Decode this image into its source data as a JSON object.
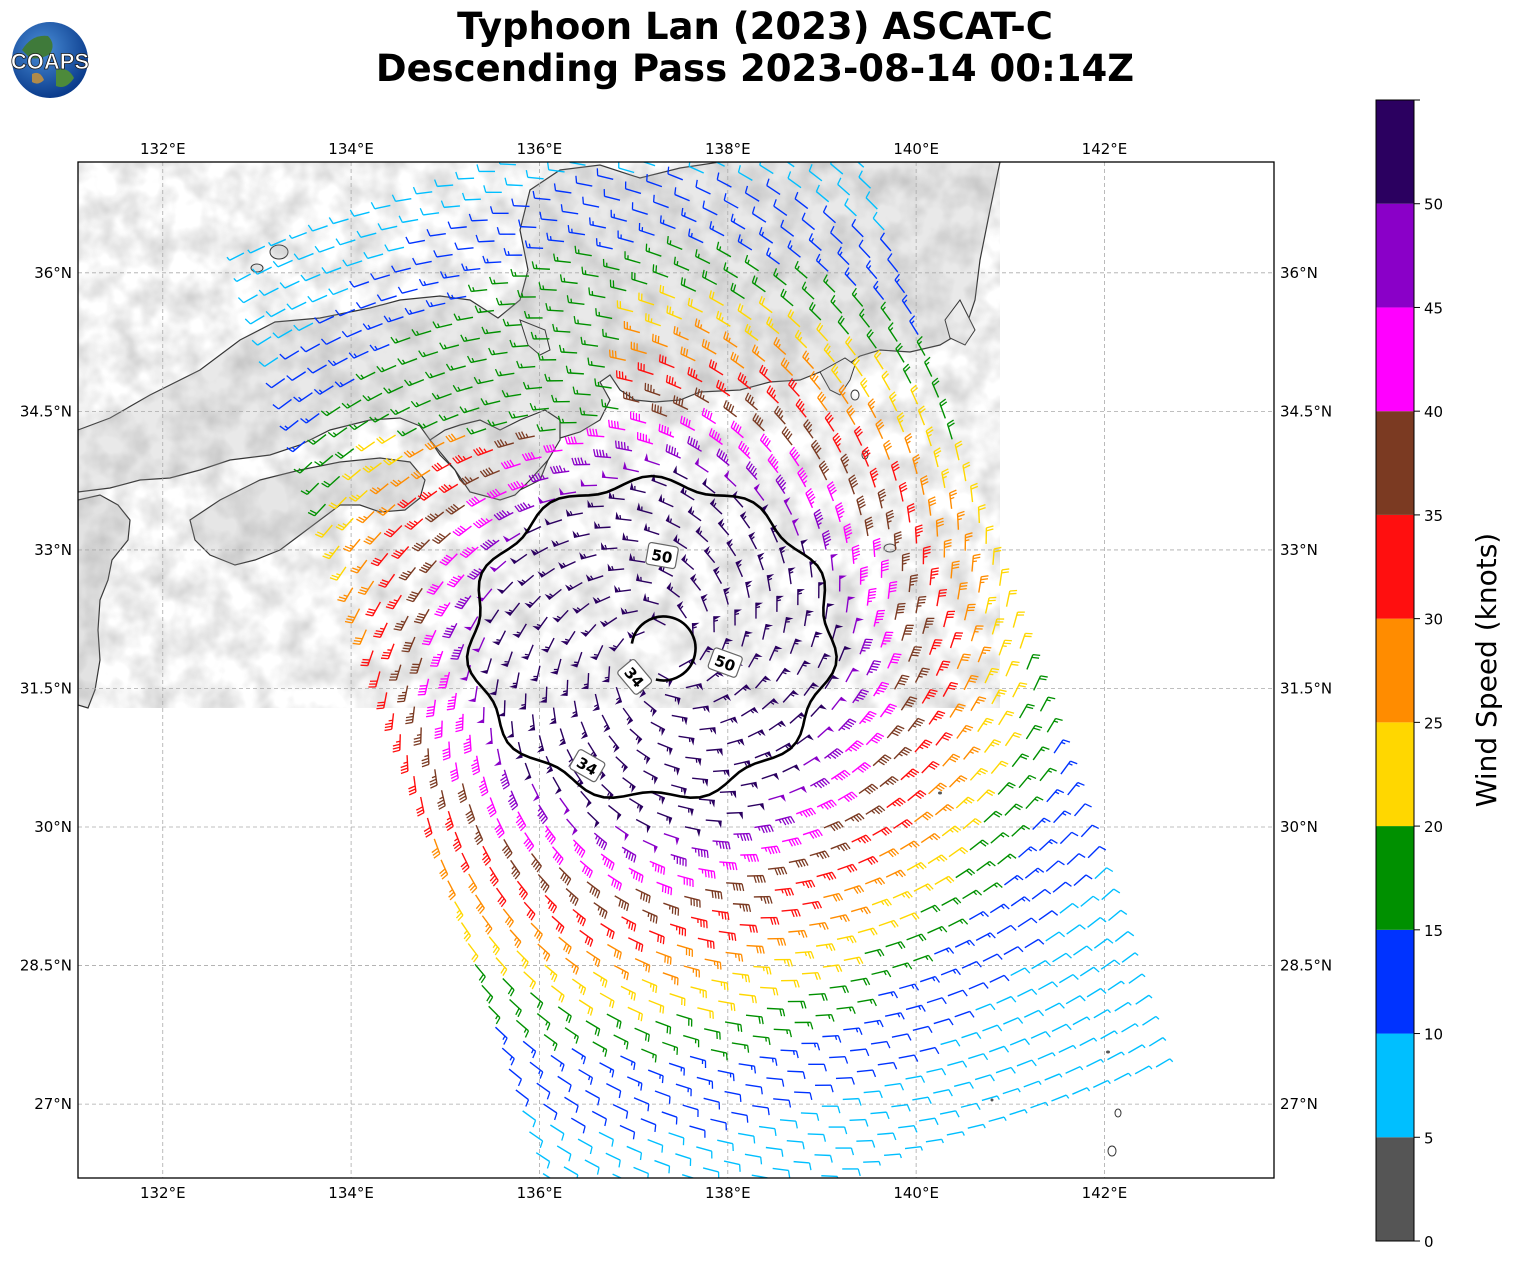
{
  "title": {
    "line1": "Typhoon Lan (2023) ASCAT-C",
    "line2": "Descending Pass 2023-08-14 00:14Z"
  },
  "logo_text": "COAPS",
  "map": {
    "lon_range": [
      131.1,
      143.8
    ],
    "lat_range": [
      26.2,
      37.2
    ],
    "lon_ticks": [
      132,
      134,
      136,
      138,
      140,
      142
    ],
    "lon_tick_labels": [
      "132°E",
      "134°E",
      "136°E",
      "138°E",
      "140°E",
      "142°E"
    ],
    "lat_ticks": [
      27,
      28.5,
      30,
      31.5,
      33,
      34.5,
      36
    ],
    "lat_tick_labels": [
      "27°N",
      "28.5°N",
      "30°N",
      "31.5°N",
      "33°N",
      "34.5°N",
      "36°N"
    ],
    "grid": true,
    "storm_center": {
      "lon": 137.3,
      "lat": 31.9
    },
    "contours": [
      {
        "label": "34",
        "color": "#000000"
      },
      {
        "label": "50",
        "color": "#000000"
      }
    ],
    "contour_labels": [
      "50",
      "50",
      "34",
      "34"
    ]
  },
  "colorbar": {
    "label": "Wind Speed (knots)",
    "bounds": [
      0,
      5,
      10,
      15,
      20,
      25,
      30,
      35,
      40,
      45,
      50,
      55
    ],
    "tick_labels": [
      "0",
      "5",
      "10",
      "15",
      "20",
      "25",
      "30",
      "35",
      "40",
      "45",
      "50"
    ],
    "colors": [
      "#555555",
      "#00bfff",
      "#0033ff",
      "#009000",
      "#ffd700",
      "#ff8c00",
      "#ff0f0f",
      "#7b3a22",
      "#ff00ff",
      "#8a00c8",
      "#2b0060"
    ]
  }
}
